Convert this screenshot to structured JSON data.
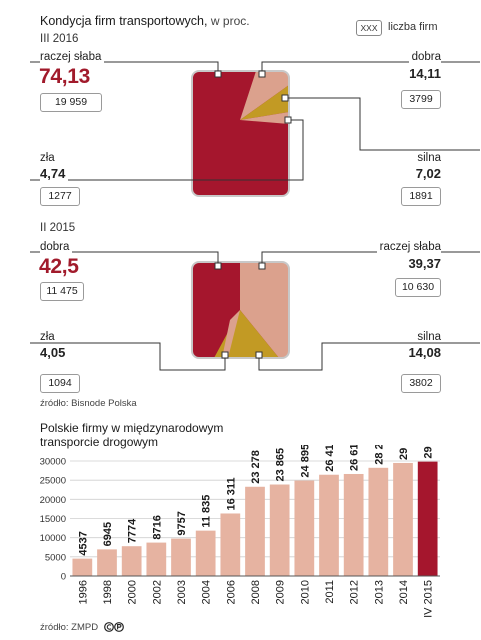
{
  "header": {
    "title": "Kondycja firm transportowych,",
    "title_suffix": "w proc.",
    "legend_box": "XXX",
    "legend_label": "liczba firm"
  },
  "panel1": {
    "period": "III 2016",
    "slices": {
      "raczej_slaba": {
        "label": "raczej słaba",
        "pct": "74,13",
        "count": "19 959"
      },
      "dobra": {
        "label": "dobra",
        "pct": "14,11",
        "count": "3799"
      },
      "zla": {
        "label": "zła",
        "pct": "4,74",
        "count": "1277"
      },
      "silna": {
        "label": "silna",
        "pct": "7,02",
        "count": "1891"
      }
    }
  },
  "panel2": {
    "period": "II 2015",
    "slices": {
      "dobra": {
        "label": "dobra",
        "pct": "42,5",
        "count": "11 475"
      },
      "raczej_slaba": {
        "label": "raczej słaba",
        "pct": "39,37",
        "count": "10 630"
      },
      "zla": {
        "label": "zła",
        "pct": "4,05",
        "count": "1094"
      },
      "silna": {
        "label": "silna",
        "pct": "14,08",
        "count": "3802"
      }
    },
    "source": "źródło: Bisnode Polska"
  },
  "bars": {
    "title_line1": "Polskie firmy w międzynarodowym",
    "title_line2": "transporcie drogowym",
    "source": "źródło: ZMPD"
  },
  "colors": {
    "dark_red": "#a5162d",
    "salmon": "#dba18d",
    "gold": "#c29a24",
    "bar": "#e6b3a1",
    "bar_highlight": "#a5162d"
  },
  "chart_data": [
    {
      "type": "pie",
      "title": "Kondycja firm transportowych, w proc.",
      "subtitle": "III 2016",
      "labels": [
        "raczej słaba",
        "dobra",
        "silna",
        "zła"
      ],
      "values": [
        74.13,
        14.11,
        7.02,
        4.74
      ],
      "counts": [
        19959,
        3799,
        1891,
        1277
      ]
    },
    {
      "type": "pie",
      "title": "Kondycja firm transportowych, w proc.",
      "subtitle": "II 2015",
      "labels": [
        "dobra",
        "raczej słaba",
        "silna",
        "zła"
      ],
      "values": [
        42.5,
        39.37,
        14.08,
        4.05
      ],
      "counts": [
        11475,
        10630,
        3802,
        1094
      ]
    },
    {
      "type": "bar",
      "title": "Polskie firmy w międzynarodowym transporcie drogowym",
      "categories": [
        "1996",
        "1998",
        "2000",
        "2002",
        "2003",
        "2004",
        "2006",
        "2008",
        "2009",
        "2010",
        "2011",
        "2012",
        "2013",
        "2014",
        "IV 2015"
      ],
      "values": [
        4537,
        6945,
        7774,
        8716,
        9757,
        11835,
        16311,
        23278,
        23865,
        24895,
        26418,
        26614,
        28227,
        29488,
        29833
      ],
      "value_labels": [
        "4537",
        "6945",
        "7774",
        "8716",
        "9757",
        "11 835",
        "16 311",
        "23 278",
        "23 865",
        "24 895",
        "26 418",
        "26 614",
        "28 227",
        "29 488",
        "29 833"
      ],
      "yticks": [
        "30000",
        "25000",
        "20000",
        "15000",
        "10000",
        "5000",
        "0"
      ],
      "ylim": [
        0,
        30000
      ],
      "grid": true,
      "highlight": "IV 2015"
    }
  ]
}
